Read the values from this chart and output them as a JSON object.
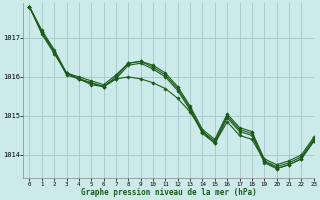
{
  "title": "Graphe pression niveau de la mer (hPa)",
  "background_color": "#cceaea",
  "grid_color": "#aacccc",
  "line_color": "#1a5c1a",
  "marker_color": "#1a5c1a",
  "xlim": [
    -0.5,
    23
  ],
  "ylim": [
    1013.4,
    1017.9
  ],
  "xticks": [
    0,
    1,
    2,
    3,
    4,
    5,
    6,
    7,
    8,
    9,
    10,
    11,
    12,
    13,
    14,
    15,
    16,
    17,
    18,
    19,
    20,
    21,
    22,
    23
  ],
  "yticks": [
    1014,
    1015,
    1016,
    1017
  ],
  "series": [
    [
      1017.8,
      1017.2,
      1016.7,
      1016.1,
      1016.0,
      1015.9,
      1015.8,
      1016.05,
      1016.35,
      1016.4,
      1016.3,
      1016.1,
      1015.75,
      1015.25,
      1014.65,
      1014.4,
      1015.05,
      1014.7,
      1014.6,
      1013.9,
      1013.75,
      1013.85,
      1014.0,
      1014.45
    ],
    [
      1017.8,
      1017.15,
      1016.65,
      1016.05,
      1015.95,
      1015.8,
      1015.75,
      1016.0,
      1016.35,
      1016.4,
      1016.25,
      1016.05,
      1015.7,
      1015.2,
      1014.6,
      1014.35,
      1015.0,
      1014.65,
      1014.55,
      1013.85,
      1013.7,
      1013.8,
      1013.95,
      1014.4
    ],
    [
      1017.8,
      1017.1,
      1016.6,
      1016.1,
      1015.95,
      1015.85,
      1015.75,
      1015.95,
      1016.3,
      1016.35,
      1016.2,
      1016.0,
      1015.65,
      1015.15,
      1014.55,
      1014.3,
      1014.95,
      1014.6,
      1014.5,
      1013.8,
      1013.65,
      1013.75,
      1013.9,
      1014.35
    ],
    [
      1017.8,
      1017.15,
      1016.65,
      1016.1,
      1015.95,
      1015.85,
      1015.75,
      1015.95,
      1016.0,
      1015.95,
      1015.85,
      1015.7,
      1015.45,
      1015.1,
      1014.6,
      1014.3,
      1014.85,
      1014.5,
      1014.4,
      1013.85,
      1013.65,
      1013.75,
      1013.9,
      1014.35
    ]
  ]
}
